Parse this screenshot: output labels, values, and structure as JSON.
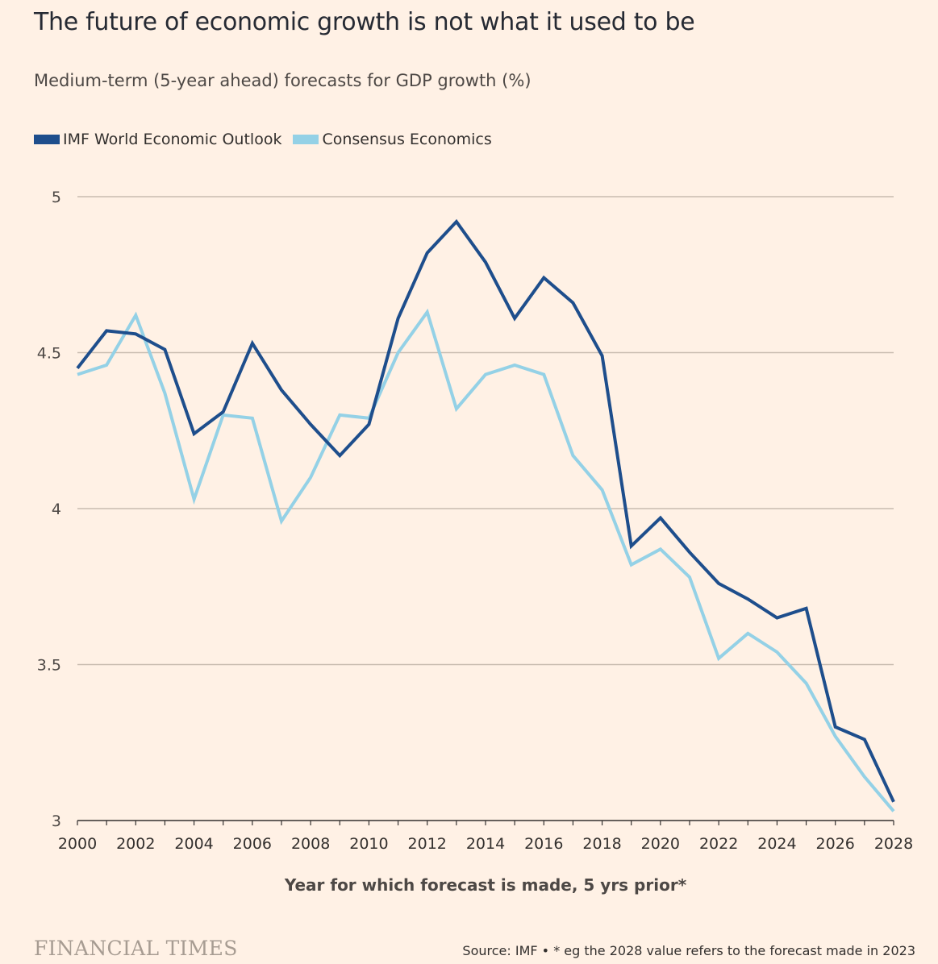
{
  "header": {
    "title": "The future of economic growth is not what it used to be",
    "subtitle": "Medium-term (5-year ahead) forecasts for GDP growth (%)"
  },
  "footer": {
    "logo": "FINANCIAL TIMES",
    "source": "Source: IMF • * eg the 2028 value refers to the forecast made in 2023"
  },
  "chart_data": {
    "type": "line",
    "title": "The future of economic growth is not what it used to be",
    "subtitle": "Medium-term (5-year ahead) forecasts for GDP growth (%)",
    "xlabel": "Year for which forecast is made, 5 yrs prior*",
    "ylabel": "",
    "x": [
      2000,
      2001,
      2002,
      2003,
      2004,
      2005,
      2006,
      2007,
      2008,
      2009,
      2010,
      2011,
      2012,
      2013,
      2014,
      2015,
      2016,
      2017,
      2018,
      2019,
      2020,
      2021,
      2022,
      2023,
      2024,
      2025,
      2026,
      2027,
      2028
    ],
    "xlim": [
      2000,
      2028
    ],
    "ylim": [
      3,
      5
    ],
    "xticks": [
      "2000",
      "2002",
      "2004",
      "2006",
      "2008",
      "2010",
      "2012",
      "2014",
      "2016",
      "2018",
      "2020",
      "2022",
      "2024",
      "2026",
      "2028"
    ],
    "yticks": [
      "3",
      "3.5",
      "4",
      "4.5",
      "5"
    ],
    "grid": "horizontal",
    "legend_position": "top-left",
    "series": [
      {
        "name": "IMF World Economic Outlook",
        "color": "#1e4e8c",
        "values": [
          4.45,
          4.57,
          4.56,
          4.51,
          4.24,
          4.31,
          4.53,
          4.38,
          4.27,
          4.17,
          4.27,
          4.61,
          4.82,
          4.92,
          4.79,
          4.61,
          4.74,
          4.66,
          4.49,
          3.88,
          3.97,
          3.86,
          3.76,
          3.71,
          3.65,
          3.68,
          3.3,
          3.26,
          3.06
        ]
      },
      {
        "name": "Consensus Economics",
        "color": "#94d1e6",
        "values": [
          4.43,
          4.46,
          4.62,
          4.37,
          4.03,
          4.3,
          4.29,
          3.96,
          4.1,
          4.3,
          4.29,
          4.5,
          4.63,
          4.32,
          4.43,
          4.46,
          4.43,
          4.17,
          4.06,
          3.82,
          3.87,
          3.78,
          3.52,
          3.6,
          3.54,
          3.44,
          3.27,
          3.14,
          3.03
        ]
      }
    ]
  }
}
